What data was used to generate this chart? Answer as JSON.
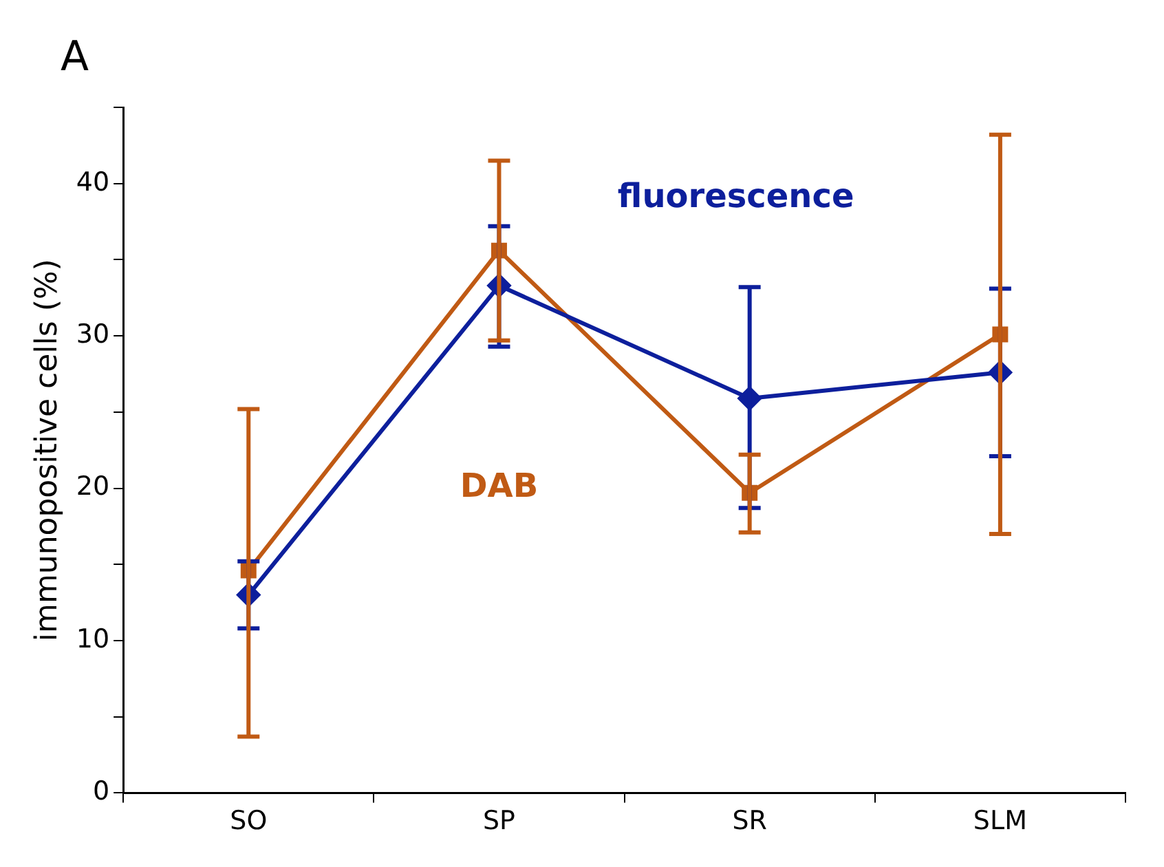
{
  "chart_data": {
    "type": "line",
    "title": "A",
    "ylabel": "immunopositive cells (%)",
    "categories": [
      "SO",
      "SP",
      "SR",
      "SLM"
    ],
    "series": [
      {
        "name": "fluorescence",
        "color": "#0d1f9c",
        "marker": "diamond",
        "values": [
          13.0,
          33.3,
          25.9,
          27.6
        ],
        "errors": [
          [
            10.8,
            15.2
          ],
          [
            29.3,
            37.2
          ],
          [
            18.7,
            33.2
          ],
          [
            22.1,
            33.1
          ]
        ]
      },
      {
        "name": "DAB",
        "color": "#c05a14",
        "marker": "square",
        "values": [
          14.6,
          35.6,
          19.7,
          30.1
        ],
        "errors": [
          [
            3.7,
            25.2
          ],
          [
            29.7,
            41.5
          ],
          [
            17.1,
            22.2
          ],
          [
            17.0,
            43.2
          ]
        ]
      }
    ],
    "ylim": [
      0,
      45
    ],
    "yticks": [
      0,
      {
        "value": 5,
        "label": null
      },
      10,
      {
        "value": 15,
        "label": null
      },
      20,
      {
        "value": 25,
        "label": null
      },
      30,
      {
        "value": 35,
        "label": null
      },
      40,
      {
        "value": 45,
        "label": null
      }
    ],
    "grid": false,
    "legend": false,
    "line_style": "solid"
  }
}
